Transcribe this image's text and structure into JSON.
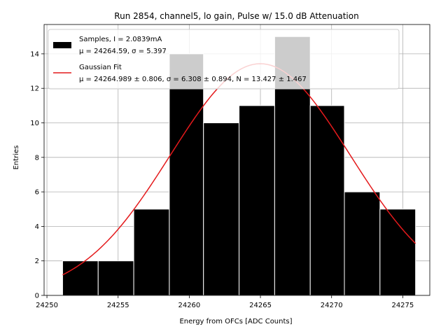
{
  "chart_data": {
    "type": "bar",
    "title": "Run 2854, channel5, lo gain, Pulse w/ 15.0 dB Attenuation",
    "xlabel": "Energy from OFCs [ADC Counts]",
    "ylabel": "Entries",
    "xlim": [
      24249.8,
      24276.9
    ],
    "ylim": [
      0,
      15.7
    ],
    "grid": true,
    "legend_position": "top-left",
    "x_ticks": [
      24250,
      24255,
      24260,
      24265,
      24270,
      24275
    ],
    "y_ticks": [
      0,
      2,
      4,
      6,
      8,
      10,
      12,
      14
    ],
    "histogram": {
      "name": "Samples, I = 2.0839mA",
      "stats_line": "μ = 24264.59, σ = 5.397",
      "color": "#000000",
      "bins": [
        {
          "x0": 24251.1,
          "x1": 24253.6,
          "count": 2
        },
        {
          "x0": 24253.6,
          "x1": 24256.1,
          "count": 2
        },
        {
          "x0": 24256.1,
          "x1": 24258.6,
          "count": 5
        },
        {
          "x0": 24258.6,
          "x1": 24261.0,
          "count": 14
        },
        {
          "x0": 24261.0,
          "x1": 24263.5,
          "count": 10
        },
        {
          "x0": 24263.5,
          "x1": 24266.0,
          "count": 11
        },
        {
          "x0": 24266.0,
          "x1": 24268.5,
          "count": 15
        },
        {
          "x0": 24268.5,
          "x1": 24270.9,
          "count": 11
        },
        {
          "x0": 24270.9,
          "x1": 24273.4,
          "count": 6
        },
        {
          "x0": 24273.4,
          "x1": 24275.9,
          "count": 5
        }
      ]
    },
    "fit": {
      "name": "Gaussian Fit",
      "stats_line": "μ = 24264.989 ± 0.806, σ = 6.308 ± 0.894, N = 13.427 ± 1.467",
      "color": "#e41a1c",
      "mu": 24264.989,
      "sigma": 6.308,
      "amplitude": 13.427,
      "x_range": [
        24251.1,
        24275.9
      ]
    }
  }
}
